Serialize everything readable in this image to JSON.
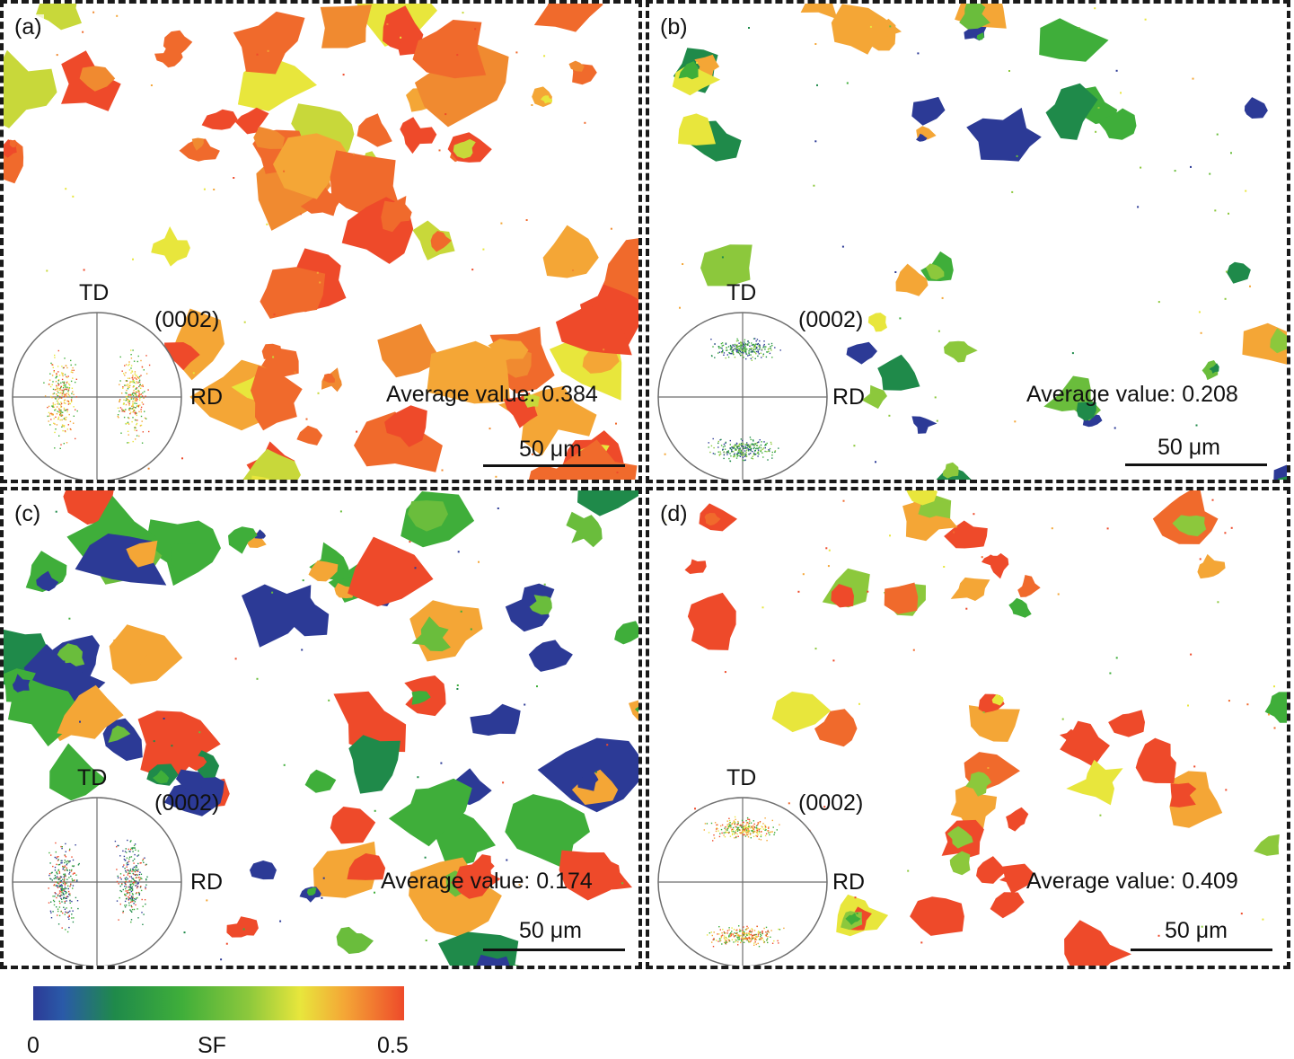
{
  "colorbar": {
    "min_label": "0",
    "mid_label": "SF",
    "max_label": "0.5",
    "colors": [
      "#2c3a96",
      "#1f8a4a",
      "#3fae3a",
      "#8cc83c",
      "#e8e63c",
      "#f4a636",
      "#ee4a2a"
    ]
  },
  "panels": [
    {
      "id": "a",
      "label": "(a)",
      "avg_text": "Average value: 0.384",
      "scale_text": "50 μm",
      "pf_td": "TD",
      "pf_rd": "RD",
      "pf_plane": "(0002)",
      "dominant": "red-orange"
    },
    {
      "id": "b",
      "label": "(b)",
      "avg_text": "Average value: 0.208",
      "scale_text": "50 μm",
      "pf_td": "TD",
      "pf_rd": "RD",
      "pf_plane": "(0002)",
      "dominant": "green"
    },
    {
      "id": "c",
      "label": "(c)",
      "avg_text": "Average value: 0.174",
      "scale_text": "50 μm",
      "pf_td": "TD",
      "pf_rd": "RD",
      "pf_plane": "(0002)",
      "dominant": "blue-green"
    },
    {
      "id": "d",
      "label": "(d)",
      "avg_text": "Average value: 0.409",
      "scale_text": "50 μm",
      "pf_td": "TD",
      "pf_rd": "RD",
      "pf_plane": "(0002)",
      "dominant": "red"
    }
  ]
}
